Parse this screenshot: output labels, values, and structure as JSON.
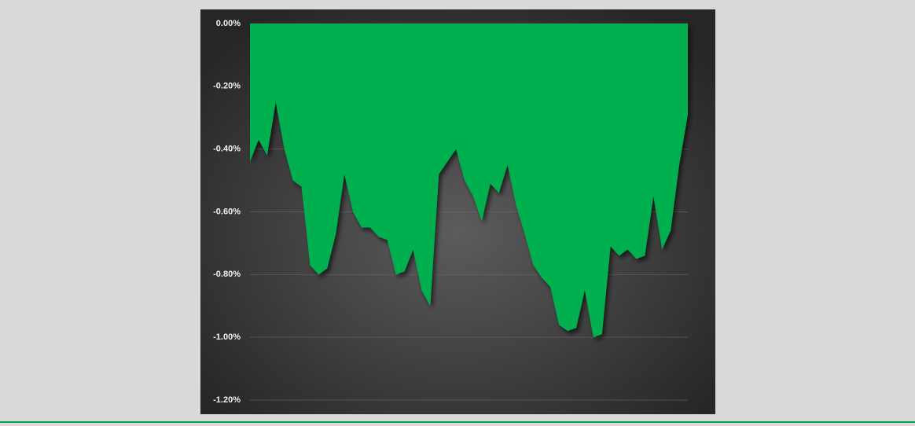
{
  "chart_data": {
    "type": "area",
    "categories": [
      null,
      null,
      null,
      null,
      null,
      null,
      null,
      null,
      null,
      null,
      null,
      null,
      null,
      null,
      null,
      null,
      null,
      null,
      null,
      null,
      null,
      null,
      null,
      null,
      null,
      null,
      null,
      null,
      null,
      null,
      null,
      null,
      null,
      null,
      null,
      null,
      null,
      null,
      null,
      null,
      null,
      null,
      null,
      null,
      null,
      null,
      null,
      null,
      null,
      null,
      null,
      null
    ],
    "values": [
      -0.44,
      -0.37,
      -0.42,
      -0.25,
      -0.4,
      -0.5,
      -0.52,
      -0.77,
      -0.8,
      -0.78,
      -0.67,
      -0.48,
      -0.6,
      -0.65,
      -0.65,
      -0.68,
      -0.69,
      -0.8,
      -0.79,
      -0.72,
      -0.85,
      -0.9,
      -0.48,
      -0.44,
      -0.4,
      -0.5,
      -0.55,
      -0.63,
      -0.51,
      -0.54,
      -0.45,
      -0.58,
      -0.67,
      -0.77,
      -0.81,
      -0.84,
      -0.96,
      -0.98,
      -0.97,
      -0.85,
      -1.0,
      -0.99,
      -0.71,
      -0.74,
      -0.72,
      -0.75,
      -0.74,
      -0.55,
      -0.72,
      -0.66,
      -0.45,
      -0.29
    ],
    "color": "#00b050",
    "ylim": [
      -1.2,
      0
    ],
    "yticks": [
      {
        "value": 0,
        "label": "0.00%"
      },
      {
        "value": -0.2,
        "label": "-0.20%"
      },
      {
        "value": -0.4,
        "label": "-0.40%"
      },
      {
        "value": -0.6,
        "label": "-0.60%"
      },
      {
        "value": -0.8,
        "label": "-0.80%"
      },
      {
        "value": -1.0,
        "label": "-1.00%"
      },
      {
        "value": -1.2,
        "label": "-1.20%"
      }
    ],
    "grid": true
  }
}
